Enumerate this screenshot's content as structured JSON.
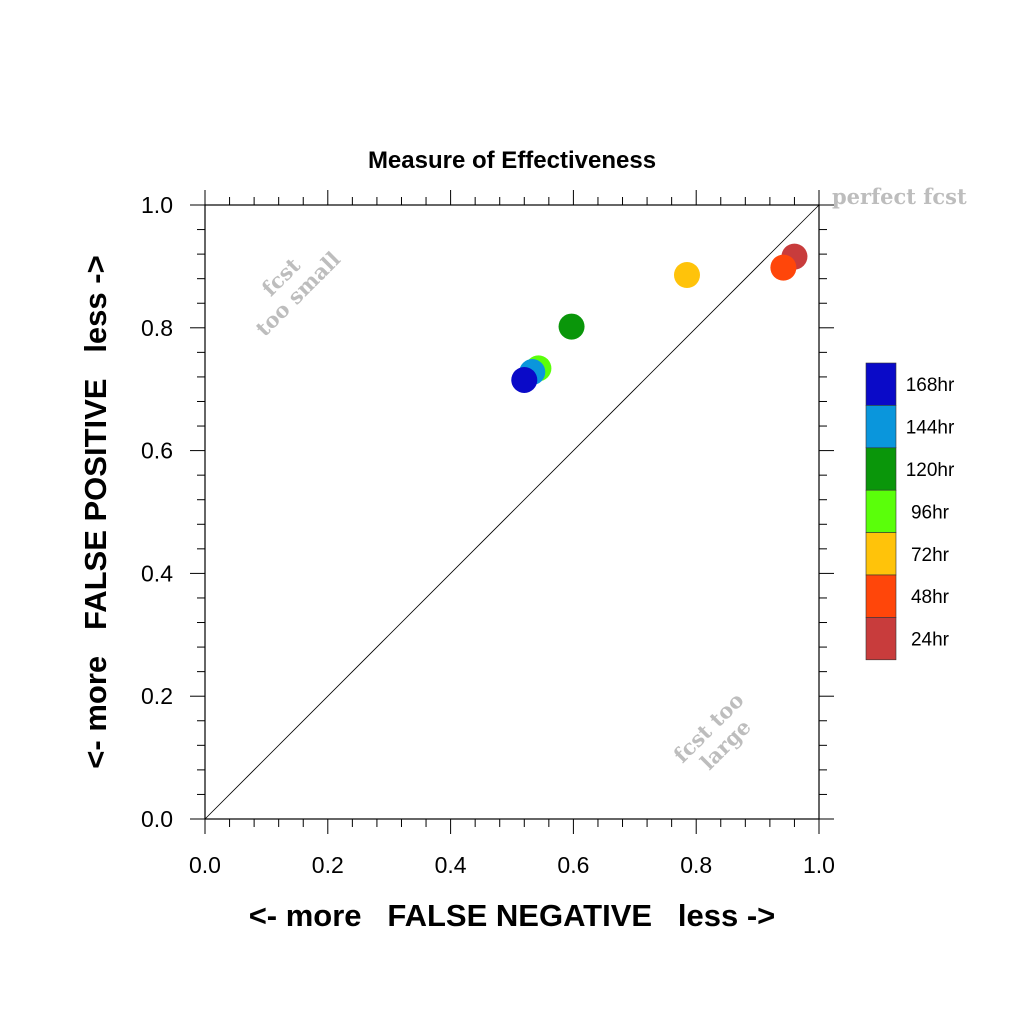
{
  "chart_data": {
    "type": "scatter",
    "title": "Measure of Effectiveness",
    "xlabel": "<- more   FALSE NEGATIVE   less ->",
    "ylabel": "<- more   FALSE POSITIVE   less ->",
    "xlim": [
      0,
      1
    ],
    "ylim": [
      0,
      1
    ],
    "xticks": [
      "0.0",
      "0.2",
      "0.4",
      "0.6",
      "0.8",
      "1.0"
    ],
    "yticks": [
      "0.0",
      "0.2",
      "0.4",
      "0.6",
      "0.8",
      "1.0"
    ],
    "grid": false,
    "diagonal_reference_line": true,
    "legend_position": "right",
    "annotations": {
      "top_right": "perfect fcst",
      "upper_left_line1": "fcst",
      "upper_left_line2": "too small",
      "lower_right_line1": "fcst too",
      "lower_right_line2": "large"
    },
    "series": [
      {
        "name": "168hr",
        "color": "#0a0ac8",
        "x": 0.52,
        "y": 0.715
      },
      {
        "name": "144hr",
        "color": "#0a96dc",
        "x": 0.533,
        "y": 0.728
      },
      {
        "name": "120hr",
        "color": "#0a960a",
        "x": 0.597,
        "y": 0.802
      },
      {
        "name": "96hr",
        "color": "#5aff0a",
        "x": 0.543,
        "y": 0.734
      },
      {
        "name": "72hr",
        "color": "#ffc30a",
        "x": 0.785,
        "y": 0.886
      },
      {
        "name": "48hr",
        "color": "#ff460a",
        "x": 0.942,
        "y": 0.898
      },
      {
        "name": "24hr",
        "color": "#c83c3c",
        "x": 0.96,
        "y": 0.916
      }
    ],
    "draw_order": [
      "24hr",
      "48hr",
      "72hr",
      "120hr",
      "96hr",
      "144hr",
      "168hr"
    ]
  }
}
